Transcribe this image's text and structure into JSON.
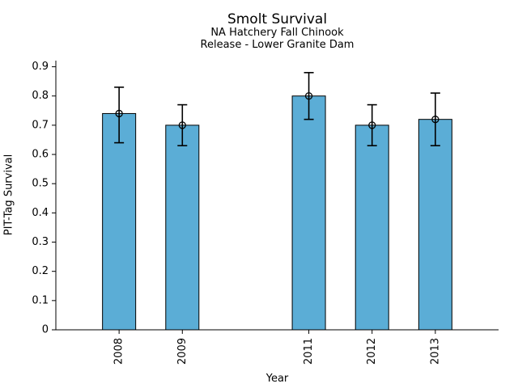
{
  "chart_data": {
    "type": "bar",
    "title": "Smolt Survival",
    "subtitle_line1": "NA Hatchery Fall Chinook",
    "subtitle_line2": "Release - Lower Granite Dam",
    "xlabel": "Year",
    "ylabel": "PIT-Tag Survival",
    "categories": [
      2008,
      2009,
      2011,
      2012,
      2013
    ],
    "values": [
      0.74,
      0.7,
      0.8,
      0.7,
      0.72
    ],
    "error_low": [
      0.64,
      0.63,
      0.72,
      0.63,
      0.63
    ],
    "error_high": [
      0.83,
      0.77,
      0.88,
      0.77,
      0.81
    ],
    "ytick_values": [
      0,
      0.1,
      0.2,
      0.3,
      0.4,
      0.5,
      0.6,
      0.7,
      0.8,
      0.9
    ],
    "ytick_labels": [
      "0",
      "0.1",
      "0.2",
      "0.3",
      "0.4",
      "0.5",
      "0.6",
      "0.7",
      "0.8",
      "0.9"
    ],
    "xlim": [
      2007,
      2014
    ],
    "ylim": [
      0,
      0.921
    ],
    "grid": false,
    "legend": "none",
    "bar_color": "#5badd6",
    "edge_color": "#000000",
    "error_color": "#000000",
    "axis_color": "#000000"
  }
}
